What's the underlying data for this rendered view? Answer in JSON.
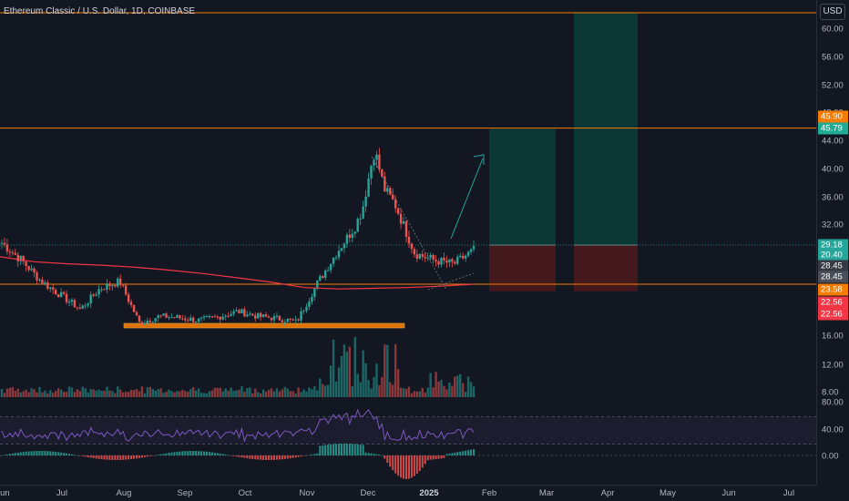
{
  "chart": {
    "title": "Ethereum Classic / U.S. Dollar, 1D, COINBASE",
    "currency": "USD",
    "price_axis_ticks": [
      "60.00",
      "56.00",
      "52.00",
      "48.00",
      "44.00",
      "40.00",
      "36.00",
      "32.00",
      "16.00",
      "12.00",
      "8.00"
    ],
    "indicator_axis_ticks": [
      "80.00",
      "40.00",
      "0.00"
    ],
    "time_axis_ticks": [
      "Jun",
      "Jul",
      "Aug",
      "Sep",
      "Oct",
      "Nov",
      "Dec",
      "2025",
      "Feb",
      "Mar",
      "Apr",
      "May",
      "Jun",
      "Jul"
    ],
    "badges": [
      {
        "label": "45.90",
        "color": "#f57c00"
      },
      {
        "label": "45.79",
        "color": "#22ab94"
      },
      {
        "label": "29.18",
        "color": "#26a69a"
      },
      {
        "label": "20.40",
        "color": "#26a69a"
      },
      {
        "label": "28.45",
        "color": "#363a45"
      },
      {
        "label": "28.45",
        "color": "#4a4e59"
      },
      {
        "label": "23.58",
        "color": "#f57c00"
      },
      {
        "label": "22.56",
        "color": "#f23645"
      },
      {
        "label": "22.56",
        "color": "#f23645"
      }
    ],
    "colors": {
      "up": "#26a69a",
      "down": "#ef5350",
      "level_line": "#f57c00",
      "moving_average": "#f23645",
      "rsi": "#7e57c2",
      "target_zone": "#0b3d37",
      "stop_zone": "#4a1a1d"
    }
  },
  "chart_data": {
    "type": "candlestick",
    "symbol": "Ethereum Classic / U.S. Dollar, 1D, COINBASE",
    "x_range": [
      "Jun",
      "Jul"
    ],
    "y_range": [
      8,
      62
    ],
    "horizontal_levels": [
      62.0,
      45.9,
      23.58
    ],
    "support_zone": [
      17.6,
      18.1
    ],
    "price_path": [
      [
        "Jun",
        29.5
      ],
      [
        "Jun",
        27
      ],
      [
        "Jun",
        24
      ],
      [
        "Jul",
        22
      ],
      [
        "Jul",
        20
      ],
      [
        "Jul",
        23
      ],
      [
        "Aug",
        24
      ],
      [
        "Aug",
        18
      ],
      [
        "Aug",
        19
      ],
      [
        "Sep",
        18.8
      ],
      [
        "Sep",
        18.4
      ],
      [
        "Sep",
        18.9
      ],
      [
        "Oct",
        19.7
      ],
      [
        "Oct",
        19.0
      ],
      [
        "Oct",
        18.7
      ],
      [
        "Nov",
        18.2
      ],
      [
        "Nov",
        23.5
      ],
      [
        "Nov",
        28
      ],
      [
        "Nov",
        32
      ],
      [
        "Dec",
        39
      ],
      [
        "Dec",
        35
      ],
      [
        "Dec",
        28
      ],
      [
        "Dec",
        27
      ],
      [
        "2025",
        26.5
      ],
      [
        "2025",
        28.45
      ]
    ],
    "moving_average_path": [
      27.5,
      26.8,
      26.5,
      26.3,
      26.0,
      25.6,
      25.1,
      24.5,
      23.9,
      23.1,
      22.9,
      23.0,
      23.1,
      23.3,
      23.58
    ],
    "position_tool": {
      "entry": 29.18,
      "target": 45.79,
      "stop": 22.56
    },
    "second_position_tool": {
      "entry": 29.18,
      "target": 62.0,
      "stop": 22.56
    },
    "rsi_levels": [
      70,
      30
    ],
    "oscillator_zero": 0.0
  }
}
